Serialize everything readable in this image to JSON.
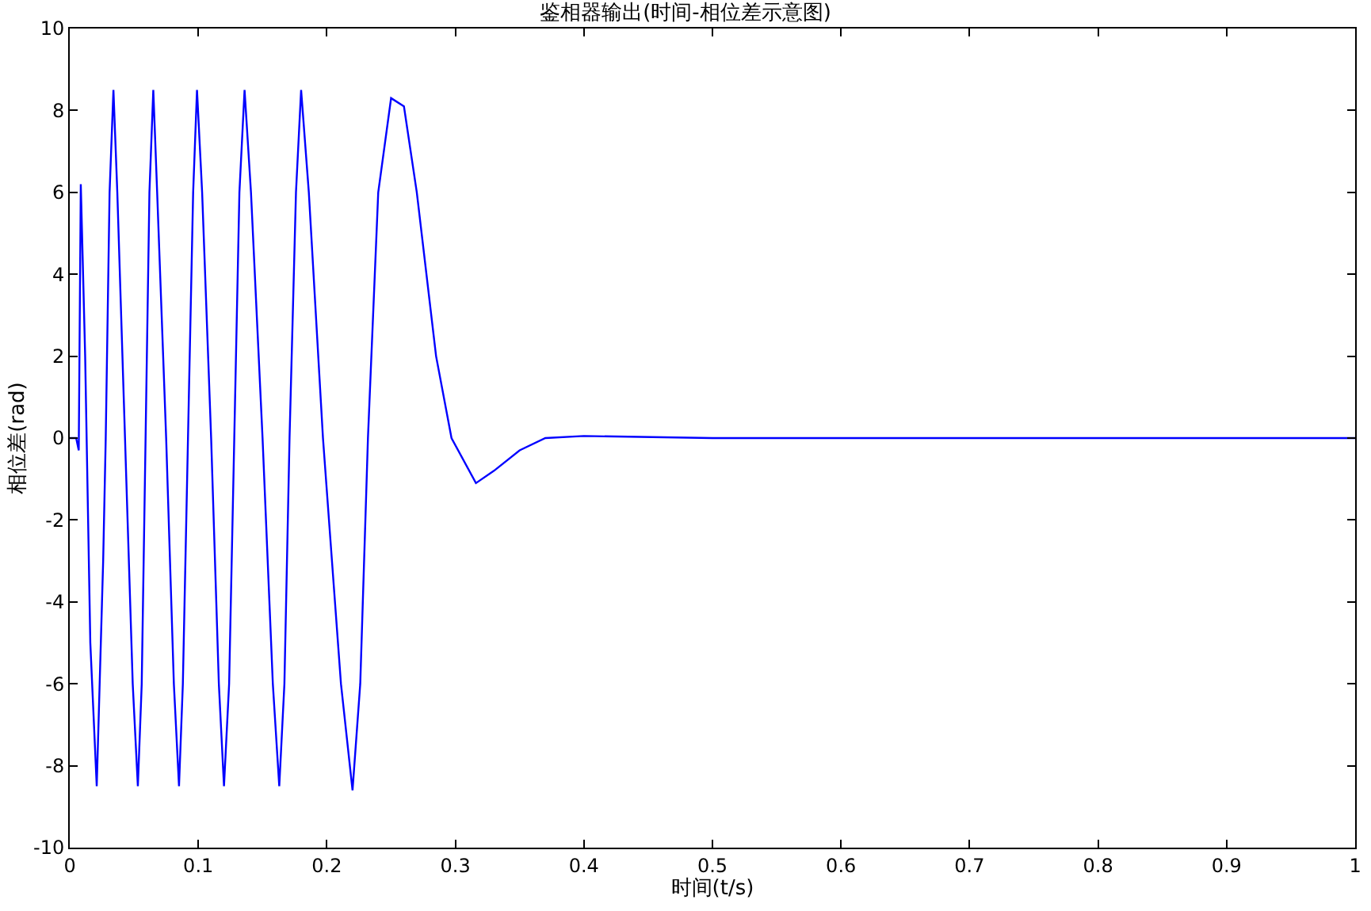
{
  "chart_data": {
    "type": "line",
    "title": "鉴相器输出(时间-相位差示意图)",
    "xlabel": "时间(t/s)",
    "ylabel": "相位差(rad)",
    "xlim": [
      0,
      1
    ],
    "xticks": [
      0,
      0.1,
      0.2,
      0.3,
      0.4,
      0.5,
      0.6,
      0.7,
      0.8,
      0.9,
      1
    ],
    "ylim": [
      -10,
      10
    ],
    "yticks": [
      -10,
      -8,
      -6,
      -4,
      -2,
      0,
      2,
      4,
      6,
      8,
      10
    ],
    "grid": false,
    "marker": "none",
    "line_style": "solid",
    "series": [
      {
        "color": "#0000ff",
        "x": [
          0,
          0.005,
          0.007,
          0.0086,
          0.012,
          0.016,
          0.021,
          0.026,
          0.028,
          0.031,
          0.034,
          0.037,
          0.043,
          0.049,
          0.053,
          0.056,
          0.059,
          0.062,
          0.065,
          0.068,
          0.075,
          0.081,
          0.085,
          0.088,
          0.092,
          0.096,
          0.099,
          0.103,
          0.11,
          0.116,
          0.12,
          0.124,
          0.128,
          0.132,
          0.136,
          0.141,
          0.15,
          0.158,
          0.163,
          0.167,
          0.171,
          0.176,
          0.18,
          0.186,
          0.197,
          0.211,
          0.22,
          0.226,
          0.232,
          0.24,
          0.25,
          0.26,
          0.27,
          0.285,
          0.297,
          0.316,
          0.33,
          0.35,
          0.37,
          0.4,
          0.5,
          1.0
        ],
        "values": [
          0,
          0,
          -0.3,
          6.2,
          2,
          -5,
          -8.5,
          -3,
          0,
          6,
          8.5,
          6,
          0,
          -6,
          -8.5,
          -6,
          0,
          6,
          8.5,
          6,
          0,
          -6,
          -8.5,
          -6,
          0,
          6,
          8.5,
          6,
          0,
          -6,
          -8.5,
          -6,
          0,
          6,
          8.5,
          6,
          0,
          -6,
          -8.5,
          -6,
          0,
          6,
          8.5,
          6,
          0,
          -6,
          -8.6,
          -6,
          0,
          6,
          8.3,
          8.1,
          6,
          2,
          0,
          -1.1,
          -0.8,
          -0.3,
          0,
          0.05,
          0,
          0
        ]
      }
    ]
  }
}
